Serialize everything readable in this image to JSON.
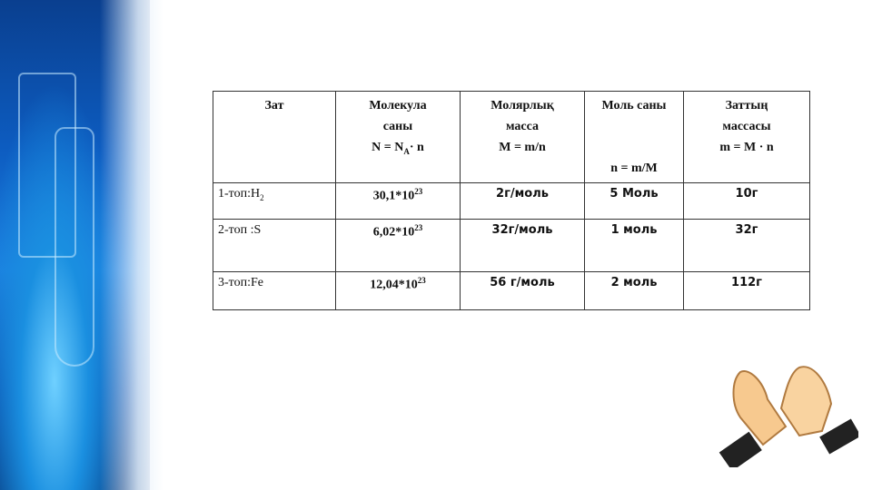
{
  "table": {
    "headers": [
      {
        "l1": "Зат",
        "l2": "",
        "f": ""
      },
      {
        "l1": "Молекула",
        "l2": "саны",
        "f": "N = N",
        "fsub": "A",
        "f2": "· n"
      },
      {
        "l1": "Молярлық",
        "l2": "масса",
        "f": "M = m/n"
      },
      {
        "l1": "Моль саны",
        "l2": "",
        "f": "n = m/M"
      },
      {
        "l1": "Заттың",
        "l2": "массасы",
        "f": "m = M · n"
      }
    ],
    "rows": [
      {
        "substance": "1-топ:H",
        "sub": "2",
        "molecules": "30,1*10",
        "exp": "23",
        "molar_mass": "2г/моль",
        "moles": "5 Моль",
        "mass": "10г"
      },
      {
        "substance": "2-топ :S",
        "sub": "",
        "molecules": "6,02*10",
        "exp": "23",
        "molar_mass": "32г/моль",
        "moles": "1 моль",
        "mass": "32г"
      },
      {
        "substance": "3-топ:Fe",
        "sub": "",
        "molecules": "12,04*10",
        "exp": "23",
        "molar_mass": "56 г/моль",
        "moles": "2 моль",
        "mass": "112г"
      }
    ]
  }
}
